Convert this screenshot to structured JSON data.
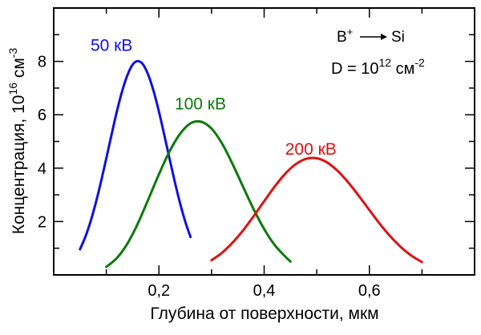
{
  "chart_data": {
    "type": "line",
    "title": "",
    "xlabel": "Глубина от поверхности, мкм",
    "ylabel_main": "Концентрация, 10",
    "ylabel_exp1": "16",
    "ylabel_unit": " см",
    "ylabel_exp2": "-3",
    "xlim": [
      0.0,
      0.8
    ],
    "ylim": [
      0.0,
      10.0
    ],
    "x_ticks": [
      {
        "value": 0.2,
        "label": "0,2"
      },
      {
        "value": 0.4,
        "label": "0,4"
      },
      {
        "value": 0.6,
        "label": "0,6"
      }
    ],
    "x_minor_step": 0.1,
    "y_ticks": [
      {
        "value": 2,
        "label": "2"
      },
      {
        "value": 4,
        "label": "4"
      },
      {
        "value": 6,
        "label": "6"
      },
      {
        "value": 8,
        "label": "8"
      }
    ],
    "y_minor_step": 1,
    "grid": false,
    "legend": "none",
    "annotation": {
      "line1_left": "B",
      "line1_sup": "+",
      "line1_right": "Si",
      "line2_left": "D = 10",
      "line2_sup": "12",
      "line2_unit": " см",
      "line2_sup2": "-2"
    },
    "series": [
      {
        "name": "50 кВ",
        "color": "#1010e0",
        "label_pos": [
          0.07,
          8.4
        ],
        "x": [
          0.05,
          0.06,
          0.07,
          0.08,
          0.09,
          0.1,
          0.11,
          0.12,
          0.13,
          0.14,
          0.15,
          0.16,
          0.17,
          0.18,
          0.19,
          0.2,
          0.21,
          0.22,
          0.23,
          0.24,
          0.25,
          0.26
        ],
        "y": [
          0.96,
          1.42,
          2.0,
          2.7,
          3.5,
          4.37,
          5.26,
          6.12,
          6.88,
          7.48,
          7.88,
          8.01,
          7.88,
          7.48,
          6.88,
          6.12,
          5.26,
          4.37,
          3.5,
          2.7,
          2.0,
          1.42
        ]
      },
      {
        "name": "100 кВ",
        "color": "#0a7a0a",
        "label_pos": [
          0.23,
          6.2
        ],
        "x": [
          0.1,
          0.12,
          0.14,
          0.16,
          0.18,
          0.2,
          0.22,
          0.24,
          0.26,
          0.28,
          0.3,
          0.32,
          0.34,
          0.36,
          0.38,
          0.4,
          0.42,
          0.44,
          0.45
        ],
        "y": [
          0.3,
          0.63,
          1.17,
          1.93,
          2.84,
          3.77,
          4.62,
          5.28,
          5.68,
          5.74,
          5.48,
          4.92,
          4.15,
          3.3,
          2.46,
          1.72,
          1.12,
          0.69,
          0.5
        ]
      },
      {
        "name": "200 кВ",
        "color": "#e01010",
        "label_pos": [
          0.44,
          4.5
        ],
        "x": [
          0.3,
          0.32,
          0.34,
          0.36,
          0.38,
          0.4,
          0.42,
          0.44,
          0.46,
          0.48,
          0.5,
          0.52,
          0.54,
          0.56,
          0.58,
          0.6,
          0.62,
          0.64,
          0.66,
          0.68,
          0.7
        ],
        "y": [
          0.55,
          0.83,
          1.21,
          1.67,
          2.2,
          2.76,
          3.31,
          3.79,
          4.15,
          4.35,
          4.37,
          4.21,
          3.89,
          3.46,
          2.96,
          2.43,
          1.91,
          1.44,
          1.04,
          0.72,
          0.48
        ]
      }
    ]
  }
}
